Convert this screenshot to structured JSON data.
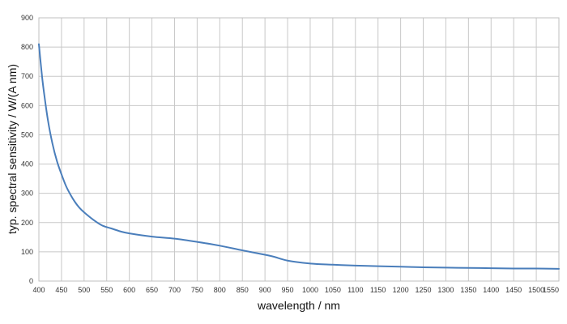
{
  "chart_data": {
    "type": "line",
    "xlabel": "wavelength / nm",
    "ylabel": "typ. spectral sensitivity / W/(A nm)",
    "xlim": [
      400,
      1550
    ],
    "ylim": [
      0,
      900
    ],
    "x_ticks": [
      400,
      450,
      500,
      550,
      600,
      650,
      700,
      750,
      800,
      850,
      900,
      950,
      1000,
      1050,
      1100,
      1150,
      1200,
      1250,
      1300,
      1350,
      1400,
      1450,
      1500,
      1550
    ],
    "y_ticks": [
      0,
      100,
      200,
      300,
      400,
      500,
      600,
      700,
      800,
      900
    ],
    "grid": true,
    "series": [
      {
        "color": "#4a7ebb",
        "x": [
          400,
          405,
          410,
          420,
          430,
          440,
          450,
          460,
          470,
          480,
          490,
          500,
          520,
          540,
          560,
          580,
          600,
          650,
          700,
          750,
          800,
          850,
          900,
          920,
          950,
          1000,
          1050,
          1100,
          1150,
          1200,
          1250,
          1300,
          1350,
          1400,
          1450,
          1500,
          1550
        ],
        "y": [
          810,
          730,
          660,
          550,
          470,
          410,
          365,
          325,
          295,
          270,
          250,
          235,
          210,
          190,
          180,
          170,
          163,
          152,
          145,
          134,
          121,
          105,
          90,
          83,
          70,
          60,
          56,
          53,
          51,
          49,
          47,
          46,
          45,
          44,
          43,
          43,
          42
        ]
      }
    ]
  }
}
